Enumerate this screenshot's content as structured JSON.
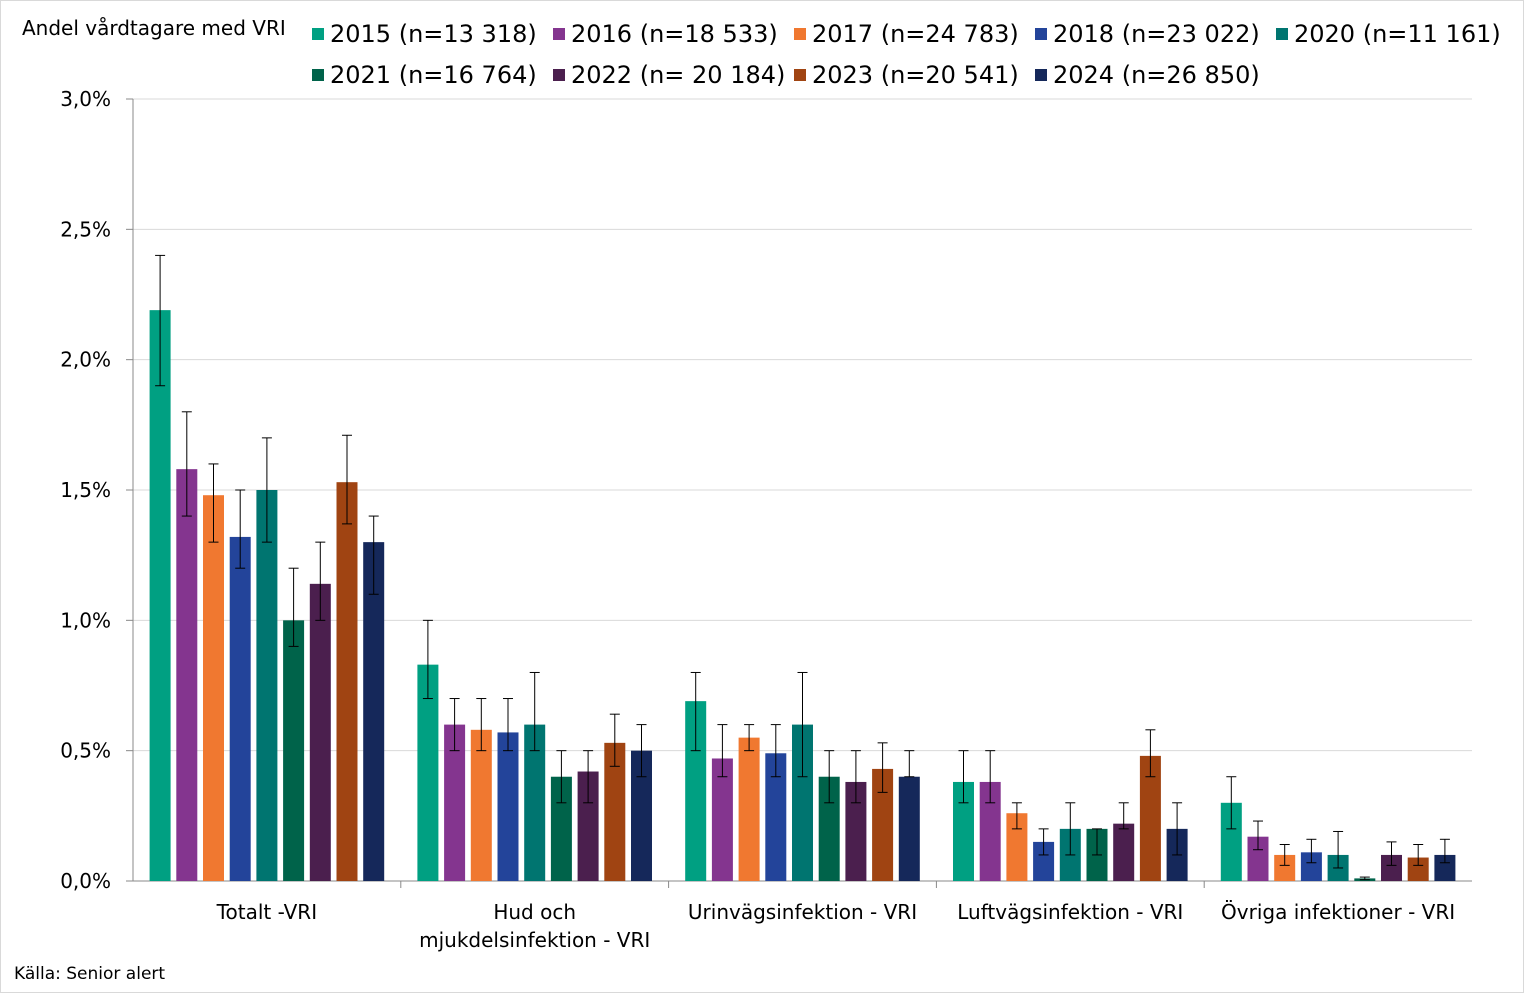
{
  "chart_data": {
    "type": "bar",
    "ylabel": "Andel vårdtagare med VRI",
    "source": "Källa: Senior alert",
    "ylim": [
      0,
      3.0
    ],
    "yticks": [
      "0,0%",
      "0,5%",
      "1,0%",
      "1,5%",
      "2,0%",
      "2,5%",
      "3,0%"
    ],
    "grid": true,
    "legend_position": "top",
    "categories": [
      [
        "Totalt -VRI"
      ],
      [
        "Hud och",
        "mjukdelsinfektion - VRI"
      ],
      [
        "Urinvägsinfektion - VRI"
      ],
      [
        "Luftvägsinfektion - VRI"
      ],
      [
        "Övriga infektioner - VRI"
      ]
    ],
    "series": [
      {
        "name": "2015 (n=13 318)",
        "color": "#00a082",
        "values": [
          2.19,
          0.83,
          0.69,
          0.38,
          0.3
        ],
        "err_low": [
          1.9,
          0.7,
          0.5,
          0.3,
          0.2
        ],
        "err_high": [
          2.4,
          1.0,
          0.8,
          0.5,
          0.4
        ]
      },
      {
        "name": "2016 (n=18 533)",
        "color": "#84358f",
        "values": [
          1.58,
          0.6,
          0.47,
          0.38,
          0.17
        ],
        "err_low": [
          1.4,
          0.5,
          0.4,
          0.3,
          0.12
        ],
        "err_high": [
          1.8,
          0.7,
          0.6,
          0.5,
          0.23
        ]
      },
      {
        "name": "2017 (n=24 783)",
        "color": "#f07830",
        "values": [
          1.48,
          0.58,
          0.55,
          0.26,
          0.1
        ],
        "err_low": [
          1.3,
          0.5,
          0.5,
          0.2,
          0.06
        ],
        "err_high": [
          1.6,
          0.7,
          0.6,
          0.3,
          0.14
        ]
      },
      {
        "name": "2018 (n=23 022)",
        "color": "#23449a",
        "values": [
          1.32,
          0.57,
          0.49,
          0.15,
          0.11
        ],
        "err_low": [
          1.2,
          0.5,
          0.4,
          0.1,
          0.07
        ],
        "err_high": [
          1.5,
          0.7,
          0.6,
          0.2,
          0.16
        ]
      },
      {
        "name": "2020 (n=11 161)",
        "color": "#007570",
        "values": [
          1.5,
          0.6,
          0.6,
          0.2,
          0.1
        ],
        "err_low": [
          1.3,
          0.5,
          0.4,
          0.1,
          0.05
        ],
        "err_high": [
          1.7,
          0.8,
          0.8,
          0.3,
          0.19
        ]
      },
      {
        "name": "2021 (n=16 764)",
        "color": "#00634a",
        "values": [
          1.0,
          0.4,
          0.4,
          0.2,
          0.01
        ],
        "err_low": [
          0.9,
          0.3,
          0.3,
          0.1,
          0.005
        ],
        "err_high": [
          1.2,
          0.5,
          0.5,
          0.2,
          0.015
        ]
      },
      {
        "name": "2022 (n= 20 184)",
        "color": "#4b1f4e",
        "values": [
          1.14,
          0.42,
          0.38,
          0.22,
          0.1
        ],
        "err_low": [
          1.0,
          0.3,
          0.3,
          0.2,
          0.06
        ],
        "err_high": [
          1.3,
          0.5,
          0.5,
          0.3,
          0.15
        ]
      },
      {
        "name": "2023 (n=20 541)",
        "color": "#a04412",
        "values": [
          1.53,
          0.53,
          0.43,
          0.48,
          0.09
        ],
        "err_low": [
          1.37,
          0.44,
          0.34,
          0.4,
          0.06
        ],
        "err_high": [
          1.71,
          0.64,
          0.53,
          0.58,
          0.14
        ]
      },
      {
        "name": "2024 (n=26 850)",
        "color": "#15285a",
        "values": [
          1.3,
          0.5,
          0.4,
          0.2,
          0.1
        ],
        "err_low": [
          1.1,
          0.4,
          0.4,
          0.1,
          0.07
        ],
        "err_high": [
          1.4,
          0.6,
          0.5,
          0.3,
          0.16
        ]
      }
    ]
  }
}
